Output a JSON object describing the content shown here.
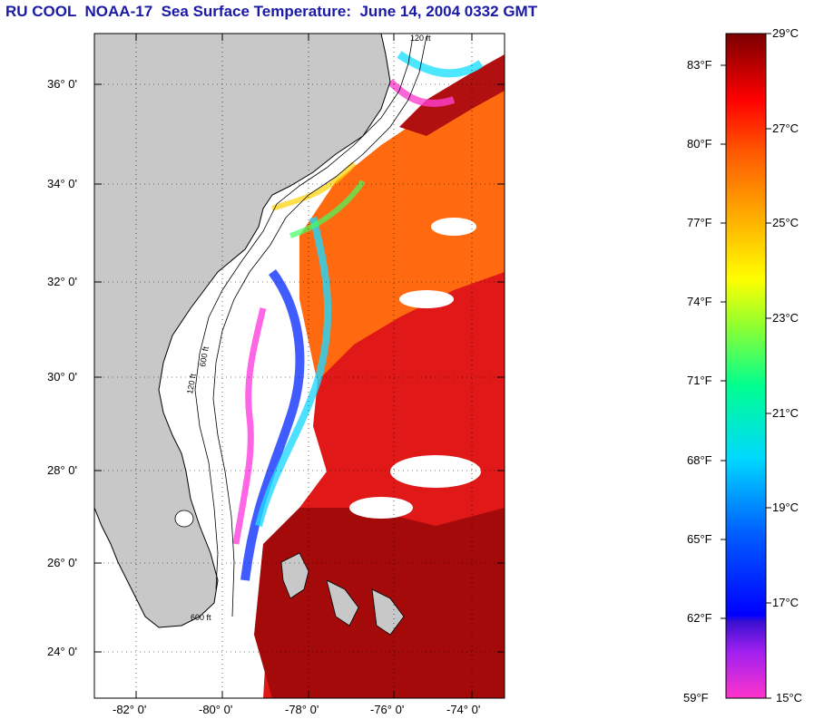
{
  "title": "RU COOL  NOAA-17  Sea Surface Temperature:  June 14, 2004 0332 GMT",
  "map": {
    "lat_labels": [
      "36° 0'",
      "34° 0'",
      "32° 0'",
      "30° 0'",
      "28° 0'",
      "26° 0'",
      "24° 0'"
    ],
    "lon_labels": [
      "-82° 0'",
      "-80° 0'",
      "-78° 0'",
      "-76° 0'",
      "-74° 0'"
    ],
    "lat_range": [
      23,
      37
    ],
    "lon_range": [
      -83,
      -73
    ],
    "grid": "dotted",
    "contour_labels": [
      "120 ft",
      "600 ft"
    ]
  },
  "colorbar": {
    "fahrenheit": [
      "83°F",
      "80°F",
      "77°F",
      "74°F",
      "71°F",
      "68°F",
      "65°F",
      "62°F",
      "59°F"
    ],
    "celsius": [
      "29°C",
      "27°C",
      "25°C",
      "23°C",
      "21°C",
      "19°C",
      "17°C",
      "15°C"
    ],
    "range_c": [
      15,
      29
    ]
  },
  "colors": {
    "title": "#1a1aa6",
    "land": "#c8c8c8",
    "cloud": "#ffffff",
    "warm": "#d01010",
    "hot": "#8b0000",
    "orange": "#ff6a00"
  }
}
